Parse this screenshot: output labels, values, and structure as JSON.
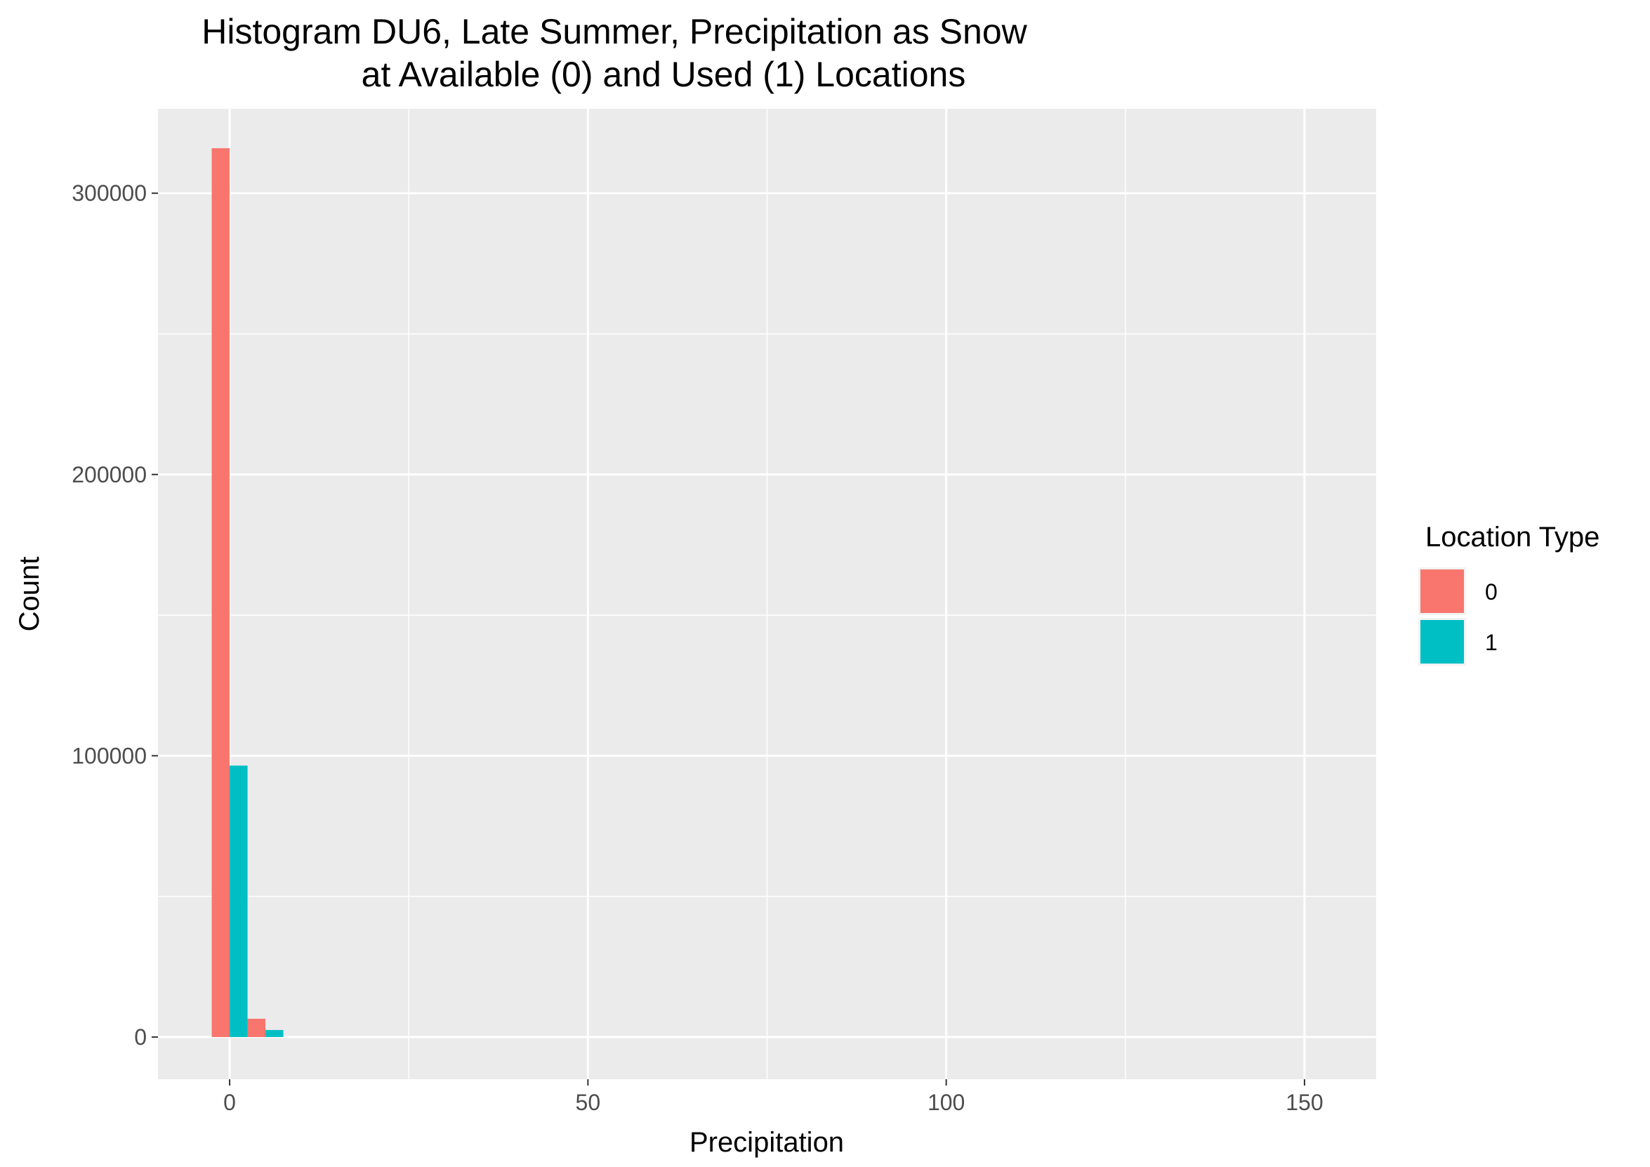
{
  "chart_data": {
    "type": "bar",
    "title": "Histogram DU6, Late Summer, Precipitation as Snow",
    "subtitle": "at Available (0) and Used (1) Locations",
    "xlabel": "Precipitation",
    "ylabel": "Count",
    "xlim": [
      -10,
      160
    ],
    "ylim": [
      -15000,
      330000
    ],
    "x_ticks": [
      0,
      50,
      100,
      150
    ],
    "x_tick_labels": [
      "0",
      "50",
      "100",
      "150"
    ],
    "x_minor_gridlines": [
      25,
      75,
      125
    ],
    "y_ticks": [
      0,
      100000,
      200000,
      300000
    ],
    "y_tick_labels": [
      "0",
      "100000",
      "200000",
      "300000"
    ],
    "y_minor_gridlines": [
      50000,
      150000,
      250000
    ],
    "bin_width": 5,
    "dodge": true,
    "grid": true,
    "legend": {
      "title": "Location Type",
      "position": "right"
    },
    "series": [
      {
        "name": "0",
        "color": "#F8766D",
        "bin_centers": [
          0,
          5
        ],
        "values": [
          316000,
          6500
        ]
      },
      {
        "name": "1",
        "color": "#00BFC4",
        "bin_centers": [
          0,
          5
        ],
        "values": [
          96500,
          2500
        ]
      }
    ]
  }
}
